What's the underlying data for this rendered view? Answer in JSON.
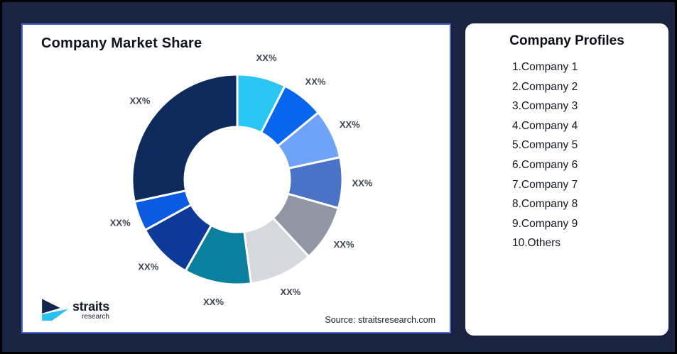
{
  "window": {
    "background_color": "#1A2440",
    "frame_border_color": "#000000"
  },
  "chart_panel": {
    "title": "Company Market Share",
    "source_note": "Source: straitsresearch.com",
    "border_color": "#4868CF"
  },
  "logo": {
    "brand": "straits",
    "brand_sub": "research",
    "icon_navy": "#14264D",
    "icon_cyan": "#29C2F0"
  },
  "profiles_panel": {
    "title": "Company Profiles",
    "items": [
      "1.Company 1",
      "2.Company 2",
      "3.Company 3",
      "4.Company 4",
      "5.Company 5",
      "6.Company 6",
      "7.Company 7",
      "8.Company 8",
      "9.Company 9",
      "10.Others"
    ]
  },
  "chart_data": {
    "type": "pie",
    "variant": "donut",
    "title": "Company Market Share",
    "data_label_text": "XX%",
    "legend_position": "none",
    "start_angle_deg": 0,
    "direction": "clockwise",
    "inner_radius_ratio": 0.5,
    "segments": [
      {
        "label": "XX%",
        "value_pct": 7.5,
        "color": "#2BC5F4"
      },
      {
        "label": "XX%",
        "value_pct": 6.5,
        "color": "#0766EC"
      },
      {
        "label": "XX%",
        "value_pct": 7.6,
        "color": "#6FA3F8"
      },
      {
        "label": "XX%",
        "value_pct": 7.8,
        "color": "#4A73C8"
      },
      {
        "label": "XX%",
        "value_pct": 8.7,
        "color": "#9096A4"
      },
      {
        "label": "XX%",
        "value_pct": 9.8,
        "color": "#D5D8DE"
      },
      {
        "label": "XX%",
        "value_pct": 10.3,
        "color": "#0A7F9E"
      },
      {
        "label": "XX%",
        "value_pct": 8.8,
        "color": "#0D3A98"
      },
      {
        "label": "XX%",
        "value_pct": 4.6,
        "color": "#0A5BE2"
      },
      {
        "label": "XX%",
        "value_pct": 28.4,
        "color": "#0E2A5C"
      }
    ]
  }
}
